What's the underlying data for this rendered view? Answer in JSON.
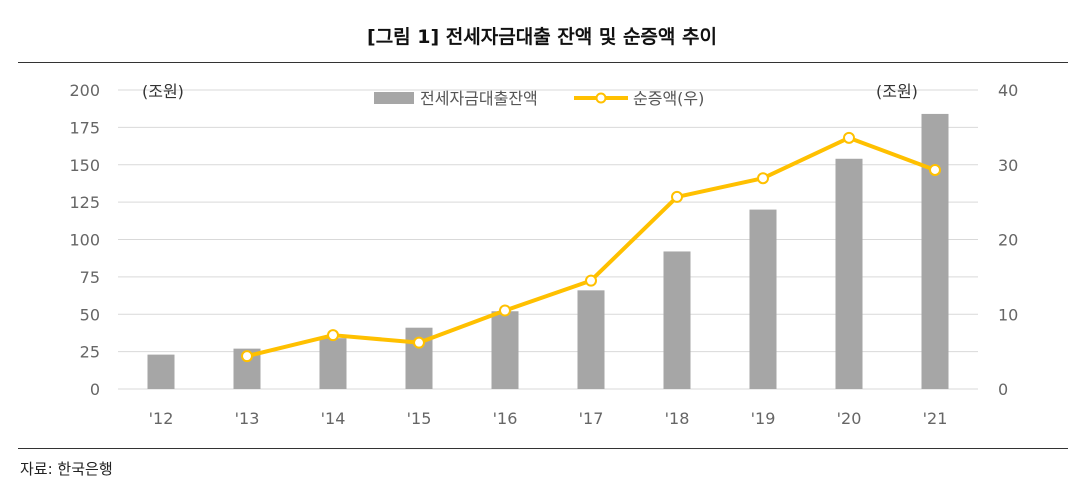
{
  "title": "[그림 1] 전세자금대출 잔액 및 순증액 추이",
  "source": "자료: 한국은행",
  "colors": {
    "bar": "#A6A6A6",
    "line": "#FFC000",
    "grid": "#D9D9D9"
  },
  "chart_data": {
    "type": "bar",
    "categories": [
      "'12",
      "'13",
      "'14",
      "'15",
      "'16",
      "'17",
      "'18",
      "'19",
      "'20",
      "'21"
    ],
    "series": [
      {
        "name": "전세자금대출잔액",
        "type": "bar",
        "axis": "left",
        "values": [
          23,
          27,
          34,
          41,
          52,
          66,
          92,
          120,
          154,
          184
        ]
      },
      {
        "name": "순증액(우)",
        "type": "line",
        "axis": "right",
        "values": [
          null,
          4.4,
          7.2,
          6.2,
          10.5,
          14.5,
          25.7,
          28.2,
          33.6,
          29.3
        ]
      }
    ],
    "left_axis": {
      "unit": "(조원)",
      "ylim": [
        0,
        200
      ],
      "ticks": [
        "0",
        "25",
        "50",
        "75",
        "100",
        "125",
        "150",
        "175",
        "200"
      ]
    },
    "right_axis": {
      "unit": "(조원)",
      "ylim": [
        0,
        40
      ],
      "ticks": [
        "0",
        "10",
        "20",
        "30",
        "40"
      ]
    },
    "grid": true,
    "legend": "top-center"
  }
}
